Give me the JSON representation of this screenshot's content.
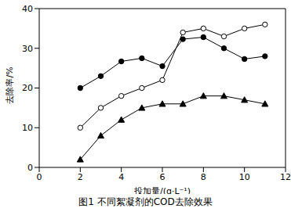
{
  "chart_data": {
    "type": "line",
    "title": "图1 不同絮凝剂的COD去除效果",
    "x_label": "投加量/(g·L⁻¹)",
    "y_label": "去除率/%",
    "x": [
      2,
      3,
      4,
      5,
      6,
      7,
      8,
      9,
      10,
      11
    ],
    "series": [
      {
        "color": "#000000",
        "marker": "circle_open",
        "values": [
          10,
          15,
          18,
          20,
          22,
          34,
          35,
          33,
          35,
          36
        ]
      },
      {
        "color": "#000000",
        "marker": "circle",
        "values": [
          20,
          23,
          26.7,
          27.5,
          25.5,
          32.3,
          32.8,
          30,
          27.3,
          28
        ]
      },
      {
        "color": "#000000",
        "marker": "triangle",
        "values": [
          2,
          8,
          12,
          15,
          16,
          16,
          18,
          18,
          17,
          16
        ]
      }
    ],
    "xlim": [
      0,
      12
    ],
    "xticks": [
      0,
      2,
      4,
      6,
      8,
      10,
      12
    ],
    "ylim": [
      0,
      40
    ],
    "yticks": [
      0,
      10,
      20,
      30,
      40
    ],
    "grid": false
  }
}
